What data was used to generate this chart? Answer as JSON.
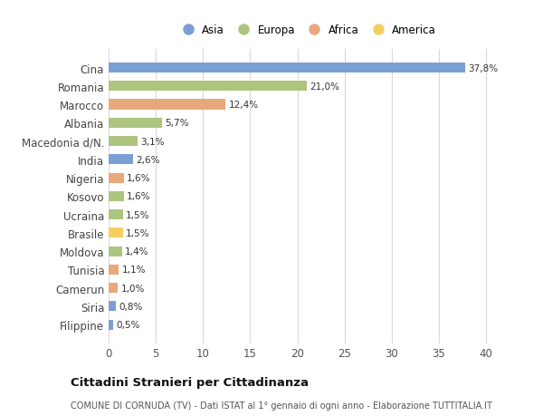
{
  "categories": [
    "Filippine",
    "Siria",
    "Camerun",
    "Tunisia",
    "Moldova",
    "Brasile",
    "Ucraina",
    "Kosovo",
    "Nigeria",
    "India",
    "Macedonia d/N.",
    "Albania",
    "Marocco",
    "Romania",
    "Cina"
  ],
  "values": [
    0.5,
    0.8,
    1.0,
    1.1,
    1.4,
    1.5,
    1.5,
    1.6,
    1.6,
    2.6,
    3.1,
    5.7,
    12.4,
    21.0,
    37.8
  ],
  "labels": [
    "0,5%",
    "0,8%",
    "1,0%",
    "1,1%",
    "1,4%",
    "1,5%",
    "1,5%",
    "1,6%",
    "1,6%",
    "2,6%",
    "3,1%",
    "5,7%",
    "12,4%",
    "21,0%",
    "37,8%"
  ],
  "continents": [
    "Asia",
    "Asia",
    "Africa",
    "Africa",
    "Europa",
    "America",
    "Europa",
    "Europa",
    "Africa",
    "Asia",
    "Europa",
    "Europa",
    "Africa",
    "Europa",
    "Asia"
  ],
  "continent_colors": {
    "Asia": "#7b9fd4",
    "Europa": "#adc47e",
    "Africa": "#e8a87c",
    "America": "#f5d060"
  },
  "legend_order": [
    "Asia",
    "Europa",
    "Africa",
    "America"
  ],
  "title": "Cittadini Stranieri per Cittadinanza",
  "subtitle": "COMUNE DI CORNUDA (TV) - Dati ISTAT al 1° gennaio di ogni anno - Elaborazione TUTTITALIA.IT",
  "xlabel_ticks": [
    0,
    5,
    10,
    15,
    20,
    25,
    30,
    35,
    40
  ],
  "xlim": [
    0,
    42
  ],
  "bg_color": "#ffffff",
  "grid_color": "#d9d9d9",
  "bar_height": 0.55
}
